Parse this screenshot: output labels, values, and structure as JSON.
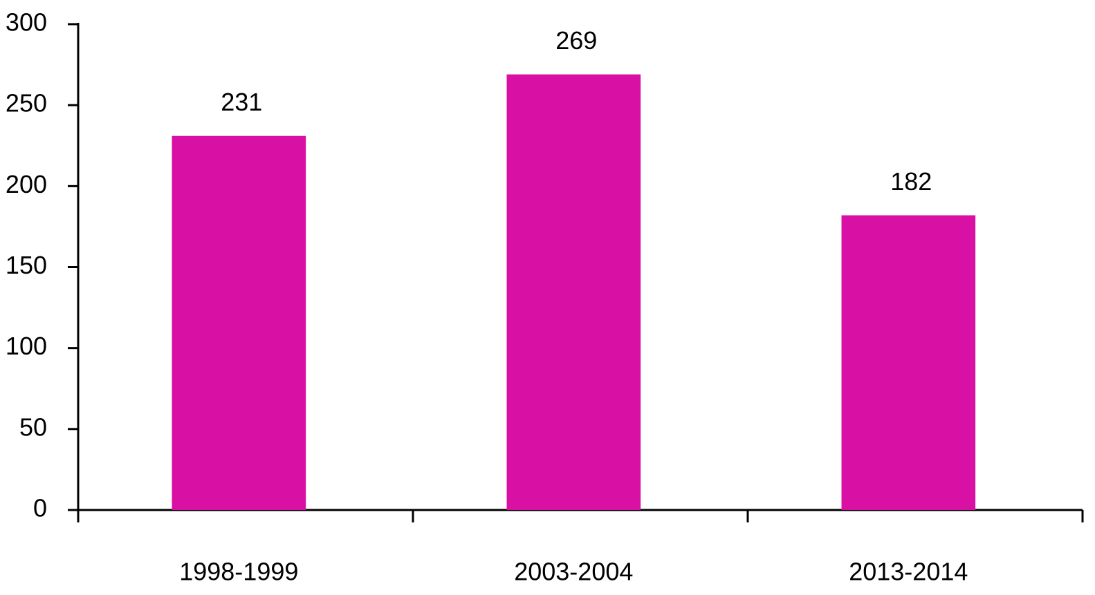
{
  "chart_data": {
    "type": "bar",
    "categories": [
      "1998-1999",
      "2003-2004",
      "2013-2014"
    ],
    "values": [
      231,
      269,
      182
    ],
    "color": "#d811a4",
    "ylim": [
      0,
      300
    ],
    "yticks": [
      0,
      50,
      100,
      150,
      200,
      250,
      300
    ],
    "grid": false
  }
}
